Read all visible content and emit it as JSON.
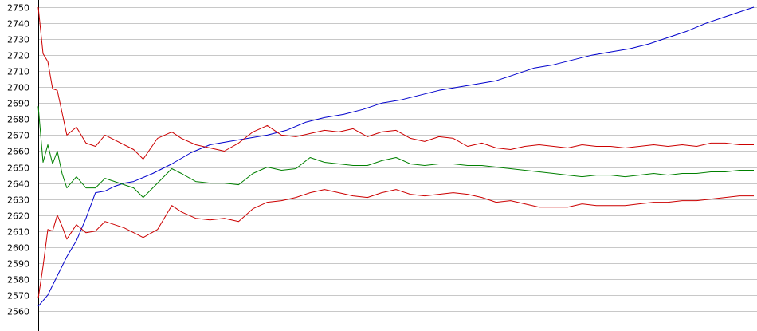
{
  "chart_data": {
    "type": "line",
    "title": "",
    "xlabel": "",
    "ylabel": "",
    "xlim": [
      0,
      150
    ],
    "ylim": [
      2560,
      2750
    ],
    "yticks": [
      2560,
      2570,
      2580,
      2590,
      2600,
      2610,
      2620,
      2630,
      2640,
      2650,
      2660,
      2670,
      2680,
      2690,
      2700,
      2710,
      2720,
      2730,
      2740,
      2750
    ],
    "ytick_labels": [
      "2560",
      "2570",
      "2580",
      "2590",
      "2600",
      "2610",
      "2620",
      "2630",
      "2640",
      "2650",
      "2660",
      "2670",
      "2680",
      "2690",
      "2700",
      "2710",
      "2720",
      "2730",
      "2740",
      "2750"
    ],
    "grid": true,
    "legend": "none",
    "x_labels_shown": false,
    "series": [
      {
        "color": "#0000cc",
        "x": [
          0,
          2,
          4,
          6,
          8,
          10,
          12,
          14,
          16,
          18,
          20,
          24,
          28,
          32,
          36,
          40,
          44,
          48,
          52,
          56,
          60,
          64,
          68,
          72,
          76,
          80,
          84,
          88,
          92,
          96,
          100,
          104,
          108,
          112,
          116,
          120,
          124,
          128,
          132,
          136,
          140,
          144,
          148,
          150
        ],
        "y": [
          2563,
          2570,
          2582,
          2594,
          2604,
          2618,
          2634,
          2635,
          2638,
          2640,
          2641,
          2646,
          2652,
          2659,
          2664,
          2666,
          2668,
          2670,
          2673,
          2678,
          2681,
          2683,
          2686,
          2690,
          2692,
          2695,
          2698,
          2700,
          2702,
          2704,
          2708,
          2712,
          2714,
          2717,
          2720,
          2722,
          2724,
          2727,
          2731,
          2735,
          2740,
          2744,
          2748,
          2750
        ]
      },
      {
        "color": "#cc0000",
        "x": [
          0,
          1,
          2,
          3,
          4,
          5,
          6,
          8,
          10,
          12,
          14,
          16,
          18,
          20,
          22,
          25,
          28,
          30,
          33,
          36,
          39,
          42,
          45,
          48,
          51,
          54,
          57,
          60,
          63,
          66,
          69,
          72,
          75,
          78,
          81,
          84,
          87,
          90,
          93,
          96,
          99,
          102,
          105,
          108,
          111,
          114,
          117,
          120,
          123,
          126,
          129,
          132,
          135,
          138,
          141,
          144,
          147,
          150
        ],
        "y": [
          2750,
          2721,
          2716,
          2699,
          2698,
          2684,
          2670,
          2675,
          2665,
          2663,
          2670,
          2667,
          2664,
          2661,
          2655,
          2668,
          2672,
          2668,
          2664,
          2662,
          2660,
          2665,
          2672,
          2676,
          2670,
          2669,
          2671,
          2673,
          2672,
          2674,
          2669,
          2672,
          2673,
          2668,
          2666,
          2669,
          2668,
          2663,
          2665,
          2662,
          2661,
          2663,
          2664,
          2663,
          2662,
          2664,
          2663,
          2663,
          2662,
          2663,
          2664,
          2663,
          2664,
          2663,
          2665,
          2665,
          2664,
          2664
        ]
      },
      {
        "color": "#008000",
        "x": [
          0,
          1,
          2,
          3,
          4,
          5,
          6,
          8,
          10,
          12,
          14,
          16,
          18,
          20,
          22,
          25,
          28,
          30,
          33,
          36,
          39,
          42,
          45,
          48,
          51,
          54,
          57,
          60,
          63,
          66,
          69,
          72,
          75,
          78,
          81,
          84,
          87,
          90,
          93,
          96,
          99,
          102,
          105,
          108,
          111,
          114,
          117,
          120,
          123,
          126,
          129,
          132,
          135,
          138,
          141,
          144,
          147,
          150
        ],
        "y": [
          2688,
          2653,
          2664,
          2652,
          2660,
          2646,
          2637,
          2644,
          2637,
          2637,
          2643,
          2641,
          2639,
          2637,
          2631,
          2640,
          2649,
          2646,
          2641,
          2640,
          2640,
          2639,
          2646,
          2650,
          2648,
          2649,
          2656,
          2653,
          2652,
          2651,
          2651,
          2654,
          2656,
          2652,
          2651,
          2652,
          2652,
          2651,
          2651,
          2650,
          2649,
          2648,
          2647,
          2646,
          2645,
          2644,
          2645,
          2645,
          2644,
          2645,
          2646,
          2645,
          2646,
          2646,
          2647,
          2647,
          2648,
          2648
        ]
      },
      {
        "color": "#cc0000",
        "x": [
          0,
          1,
          2,
          3,
          4,
          5,
          6,
          8,
          10,
          12,
          14,
          16,
          18,
          20,
          22,
          25,
          28,
          30,
          33,
          36,
          39,
          42,
          45,
          48,
          51,
          54,
          57,
          60,
          63,
          66,
          69,
          72,
          75,
          78,
          81,
          84,
          87,
          90,
          93,
          96,
          99,
          102,
          105,
          108,
          111,
          114,
          117,
          120,
          123,
          126,
          129,
          132,
          135,
          138,
          141,
          144,
          147,
          150
        ],
        "y": [
          2568,
          2588,
          2611,
          2610,
          2620,
          2613,
          2605,
          2614,
          2609,
          2610,
          2616,
          2614,
          2612,
          2609,
          2606,
          2611,
          2626,
          2622,
          2618,
          2617,
          2618,
          2616,
          2624,
          2628,
          2629,
          2631,
          2634,
          2636,
          2634,
          2632,
          2631,
          2634,
          2636,
          2633,
          2632,
          2633,
          2634,
          2633,
          2631,
          2628,
          2629,
          2627,
          2625,
          2625,
          2625,
          2627,
          2626,
          2626,
          2626,
          2627,
          2628,
          2628,
          2629,
          2629,
          2630,
          2631,
          2632,
          2632
        ]
      }
    ]
  }
}
